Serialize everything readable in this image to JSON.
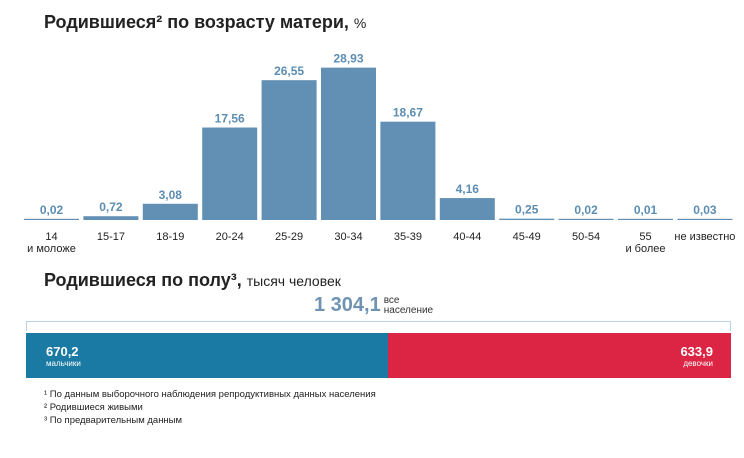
{
  "chart1": {
    "title": "Родившиеся² по возрасту матери,",
    "unit": "%"
  },
  "chart_data": [
    {
      "type": "bar",
      "title": "Родившиеся² по возрасту матери, %",
      "categories": [
        [
          "14",
          "и моложе"
        ],
        [
          "15-17"
        ],
        [
          "18-19"
        ],
        [
          "20-24"
        ],
        [
          "25-29"
        ],
        [
          "30-34"
        ],
        [
          "35-39"
        ],
        [
          "40-44"
        ],
        [
          "45-49"
        ],
        [
          "50-54"
        ],
        [
          "55",
          "и более"
        ],
        [
          "не известно"
        ]
      ],
      "values": [
        0.02,
        0.72,
        3.08,
        17.56,
        26.55,
        28.93,
        18.67,
        4.16,
        0.25,
        0.02,
        0.01,
        0.03
      ],
      "value_labels": [
        "0,02",
        "0,72",
        "3,08",
        "17,56",
        "26,55",
        "28,93",
        "18,67",
        "4,16",
        "0,25",
        "0,02",
        "0,01",
        "0,03"
      ],
      "ylim": [
        0,
        30
      ],
      "grid": false,
      "colors": {
        "bar": "#6190b4",
        "label": "#5c8db2",
        "axis_text": "#222222"
      }
    },
    {
      "type": "bar",
      "title": "Родившиеся по полу³, тысяч человек",
      "total": {
        "value": 1304.1,
        "label": "1 304,1",
        "note": [
          "все",
          "население"
        ]
      },
      "series": [
        {
          "name": "мальчики",
          "values": [
            670.2
          ],
          "label": "670,2",
          "color": "#1a7aa3"
        },
        {
          "name": "девочки",
          "values": [
            633.9
          ],
          "label": "633,9",
          "color": "#dc2444"
        }
      ]
    }
  ],
  "chart2": {
    "title": "Родившиеся по полу³,",
    "unit": "тысяч человек"
  },
  "footnotes": [
    "¹ По данным выборочного наблюдения репродуктивных данных населения",
    "² Родившиеся живыми",
    "³ По предварительным данным"
  ]
}
